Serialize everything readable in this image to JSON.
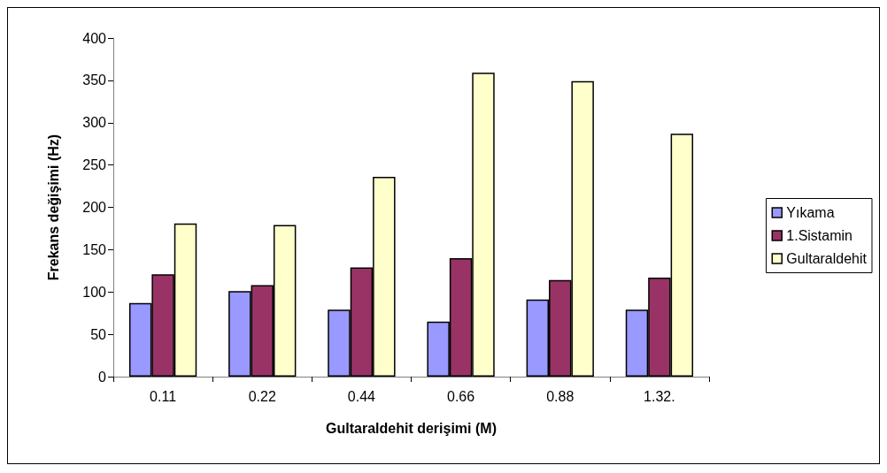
{
  "chart_data": {
    "type": "bar",
    "xlabel": "Gultaraldehit derişimi (M)",
    "ylabel": "Frekans değişimi (Hz)",
    "categories": [
      "0.11",
      "0.22",
      "0.44",
      "0.66",
      "0.88",
      "1.32."
    ],
    "series": [
      {
        "name": "Yıkama",
        "color": "#9999ff",
        "values": [
          87,
          101,
          79,
          65,
          91,
          79
        ]
      },
      {
        "name": "1.Sistamin",
        "color": "#993366",
        "values": [
          121,
          108,
          129,
          140,
          114,
          117
        ]
      },
      {
        "name": "Gultaraldehit",
        "color": "#ffffcc",
        "values": [
          181,
          179,
          236,
          359,
          349,
          287
        ]
      }
    ],
    "ylim": [
      0,
      400
    ],
    "yticks": [
      0,
      50,
      100,
      150,
      200,
      250,
      300,
      350,
      400
    ],
    "grid": false,
    "legend": "right"
  }
}
